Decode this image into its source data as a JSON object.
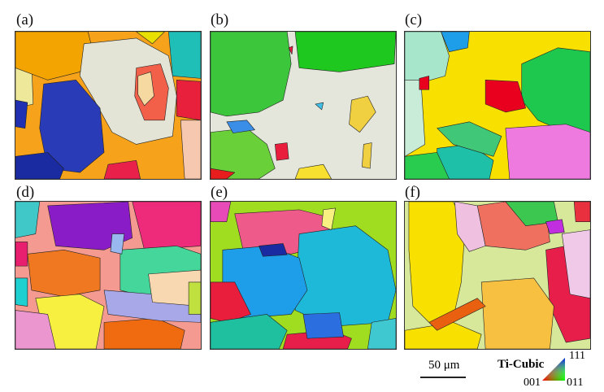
{
  "panels": [
    {
      "label": "(a)"
    },
    {
      "label": "(b)"
    },
    {
      "label": "(c)"
    },
    {
      "label": "(d)"
    },
    {
      "label": "(e)"
    },
    {
      "label": "(f)"
    }
  ],
  "scale_bar": {
    "label": "50 μm"
  },
  "legend": {
    "title": "Ti-Cubic",
    "corner_111": "111",
    "corner_001": "001",
    "corner_011": "011",
    "colors": {
      "001": "#ff0000",
      "011": "#00ff00",
      "111": "#0000ff"
    }
  }
}
